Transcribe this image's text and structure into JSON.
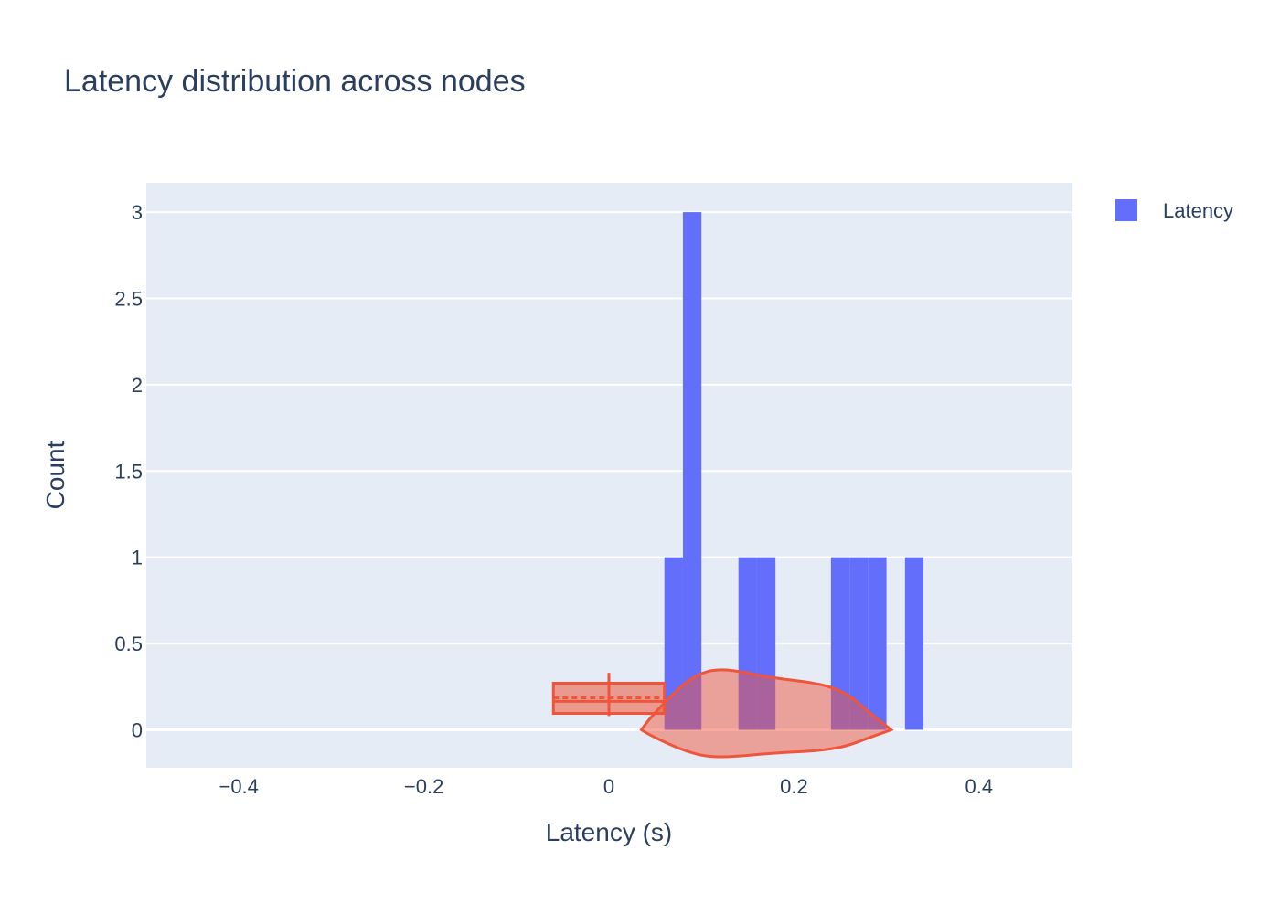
{
  "chart_data": {
    "type": "bar",
    "title": "Latency distribution across nodes",
    "xlabel": "Latency (s)",
    "ylabel": "Count",
    "xlim": [
      -0.5,
      0.5
    ],
    "ylim": [
      -0.22,
      3.17
    ],
    "x_ticks": [
      -0.4,
      -0.2,
      0,
      0.2,
      0.4
    ],
    "x_tick_labels": [
      "−0.4",
      "−0.2",
      "0",
      "0.2",
      "0.4"
    ],
    "y_ticks": [
      0,
      0.5,
      1,
      1.5,
      2,
      2.5,
      3
    ],
    "y_tick_labels": [
      "0",
      "0.5",
      "1",
      "1.5",
      "2",
      "2.5",
      "3"
    ],
    "grid": true,
    "legend": {
      "position": "top-right",
      "entries": [
        {
          "name": "Latency",
          "color": "#636efa"
        }
      ]
    },
    "series": [
      {
        "name": "Latency",
        "kind": "histogram",
        "color": "#636efa",
        "bin_width": 0.02,
        "bins": [
          {
            "start": 0.06,
            "count": 1
          },
          {
            "start": 0.08,
            "count": 3
          },
          {
            "start": 0.14,
            "count": 1
          },
          {
            "start": 0.16,
            "count": 1
          },
          {
            "start": 0.24,
            "count": 1
          },
          {
            "start": 0.26,
            "count": 1
          },
          {
            "start": 0.28,
            "count": 1
          },
          {
            "start": 0.32,
            "count": 1
          }
        ]
      },
      {
        "kind": "violin",
        "orientation": "horizontal",
        "color": "#ef553b",
        "fill": "rgba(239,85,59,0.5)",
        "position": 0,
        "half_width": 0.35,
        "outline": [
          {
            "x": 0.125,
            "w": 0.246
          },
          {
            "x": 0.145,
            "w": 0.235
          },
          {
            "x": 0.165,
            "w": 0.22
          },
          {
            "x": 0.19,
            "w": 0.205
          },
          {
            "x": 0.215,
            "w": 0.195
          },
          {
            "x": 0.24,
            "w": 0.175
          },
          {
            "x": 0.26,
            "w": 0.14
          },
          {
            "x": 0.28,
            "w": 0.075
          },
          {
            "x": 0.295,
            "w": 0.03
          },
          {
            "x": 0.305,
            "w": 0.0
          },
          {
            "x": 0.105,
            "w": 0.24
          },
          {
            "x": 0.085,
            "w": 0.2
          },
          {
            "x": 0.065,
            "w": 0.13
          },
          {
            "x": 0.045,
            "w": 0.05
          },
          {
            "x": 0.035,
            "w": 0.0
          }
        ],
        "box": {
          "q1": 0.095,
          "median": 0.165,
          "q3": 0.27,
          "mean": 0.185,
          "whisker_low": 0.08,
          "whisker_high": 0.33
        }
      }
    ]
  }
}
